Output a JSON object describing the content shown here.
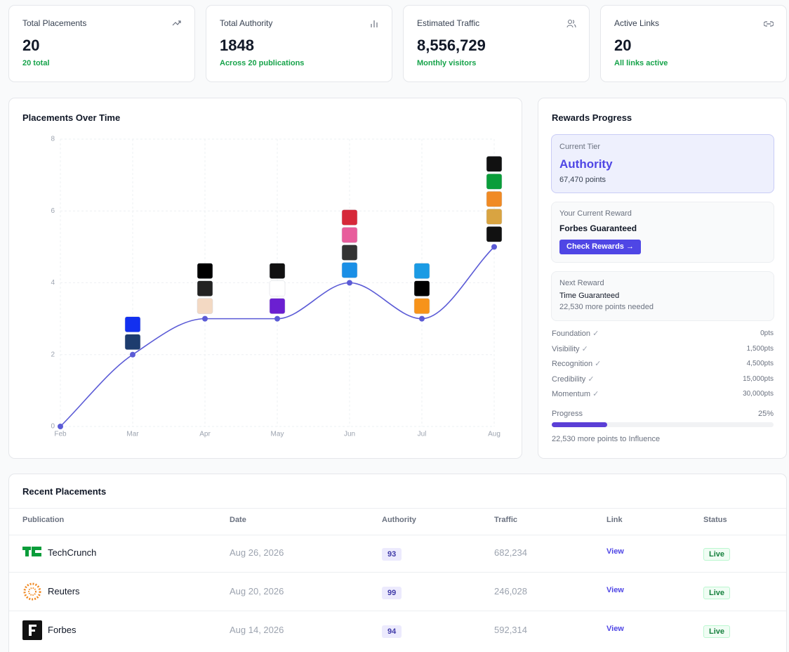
{
  "stats": [
    {
      "label": "Total Placements",
      "value": "20",
      "note": "20 total"
    },
    {
      "label": "Total Authority",
      "value": "1848",
      "note": "Across 20 publications"
    },
    {
      "label": "Estimated Traffic",
      "value": "8,556,729",
      "note": "Monthly visitors"
    },
    {
      "label": "Active Links",
      "value": "20",
      "note": "All links active"
    }
  ],
  "chart_data": {
    "type": "line",
    "title": "Placements Over Time",
    "categories": [
      "Feb",
      "Mar",
      "Apr",
      "May",
      "Jun",
      "Jul",
      "Aug"
    ],
    "values": [
      0,
      2,
      3,
      3,
      4,
      3,
      5
    ],
    "color": "#5b5bd6",
    "ylim": [
      0,
      8
    ],
    "yticks": [
      0,
      2,
      4,
      6,
      8
    ],
    "grid": true
  },
  "rewards": {
    "title": "Rewards Progress",
    "tier": {
      "label": "Current Tier",
      "name": "Authority",
      "points": "67,470 points"
    },
    "current": {
      "label": "Your Current Reward",
      "name": "Forbes Guaranteed",
      "button": "Check Rewards →"
    },
    "next": {
      "label": "Next Reward",
      "name": "Time Guaranteed",
      "note": "22,530 more points needed"
    },
    "tiers": [
      [
        "Foundation",
        "0pts"
      ],
      [
        "Visibility",
        "1,500pts"
      ],
      [
        "Recognition",
        "4,500pts"
      ],
      [
        "Credibility",
        "15,000pts"
      ],
      [
        "Momentum",
        "30,000pts"
      ]
    ],
    "progress": {
      "label": "Progress",
      "value": 25,
      "value_label": "25%",
      "note": "22,530 more points to Influence"
    }
  },
  "placements": {
    "title": "Recent Placements",
    "columns": [
      "Publication",
      "Date",
      "Authority",
      "Traffic",
      "Link",
      "Status"
    ],
    "rows": [
      [
        "TechCrunch",
        "Aug 26, 2026",
        "93",
        "682,234",
        "View",
        "Live"
      ],
      [
        "Reuters",
        "Aug 20, 2026",
        "99",
        "246,028",
        "View",
        "Live"
      ],
      [
        "Forbes",
        "Aug 14, 2026",
        "94",
        "592,314",
        "View",
        "Live"
      ]
    ]
  }
}
